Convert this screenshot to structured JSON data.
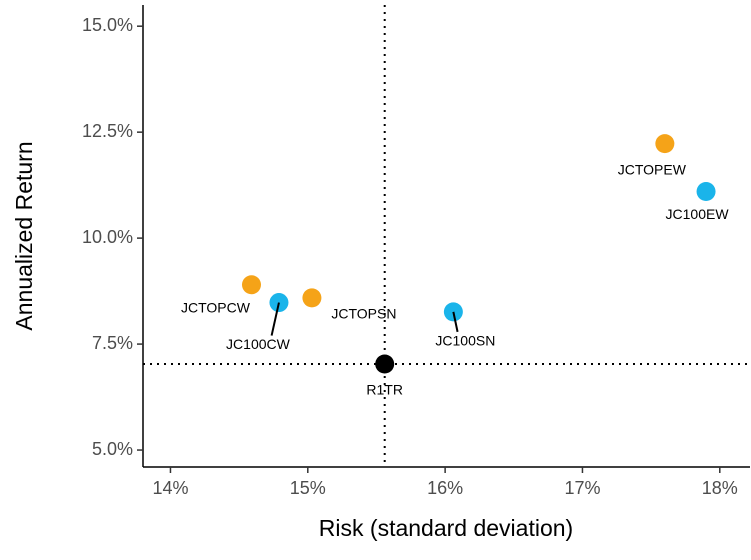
{
  "chart_data": {
    "type": "scatter",
    "x_label": "Risk (standard deviation)",
    "y_label": "Annualized Return",
    "xlim": [
      13.8,
      18.22
    ],
    "ylim": [
      4.6,
      15.5
    ],
    "xticks": [
      {
        "value": 14,
        "label": "14%"
      },
      {
        "value": 15,
        "label": "15%"
      },
      {
        "value": 16,
        "label": "16%"
      },
      {
        "value": 17,
        "label": "17%"
      },
      {
        "value": 18,
        "label": "18%"
      }
    ],
    "yticks": [
      {
        "value": 5,
        "label": "5.0%"
      },
      {
        "value": 7.5,
        "label": "7.5%"
      },
      {
        "value": 10,
        "label": "10.0%"
      },
      {
        "value": 12.5,
        "label": "12.5%"
      },
      {
        "value": 15,
        "label": "15.0%"
      }
    ],
    "points": [
      {
        "label": "JCTOPEW",
        "x": 17.6,
        "y": 12.23,
        "color": "#f5a318"
      },
      {
        "label": "JC100EW",
        "x": 17.9,
        "y": 11.1,
        "color": "#1ab4ea"
      },
      {
        "label": "JCTOPCW",
        "x": 14.59,
        "y": 8.9,
        "color": "#f5a318"
      },
      {
        "label": "JC100CW",
        "x": 14.79,
        "y": 8.48,
        "color": "#1ab4ea"
      },
      {
        "label": "JCTOPSN",
        "x": 15.03,
        "y": 8.59,
        "color": "#f5a318"
      },
      {
        "label": "JC100SN",
        "x": 16.06,
        "y": 8.26,
        "color": "#1ab4ea"
      },
      {
        "label": "R1TR",
        "x": 15.56,
        "y": 7.03,
        "color": "#000000"
      }
    ],
    "reference_point": 6
  }
}
